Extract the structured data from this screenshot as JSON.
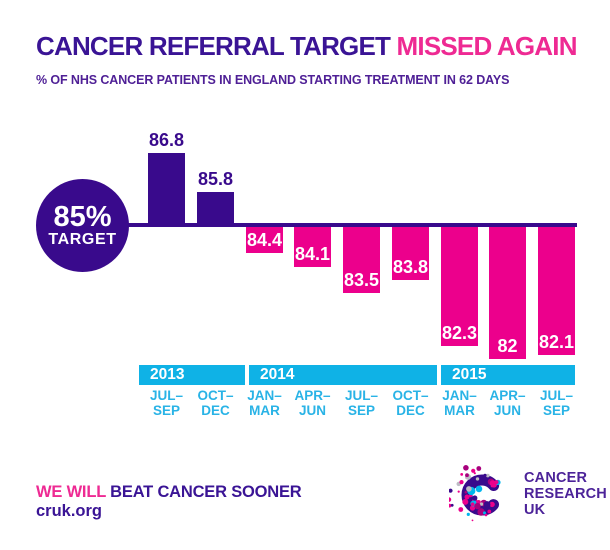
{
  "title": {
    "main": "CANCER REFERRAL TARGET",
    "highlight": "MISSED AGAIN"
  },
  "subtitle": "% OF NHS CANCER PATIENTS IN ENGLAND STARTING TREATMENT IN 62 DAYS",
  "target_badge": {
    "value": "85%",
    "label": "TARGET"
  },
  "chart_data": {
    "type": "bar",
    "title": "CANCER REFERRAL TARGET MISSED AGAIN",
    "subtitle": "% OF NHS CANCER PATIENTS IN ENGLAND STARTING TREATMENT IN 62 DAYS",
    "target_line": 85,
    "unit": "%",
    "values": [
      86.8,
      85.8,
      84.4,
      84.1,
      83.5,
      83.8,
      82.3,
      82,
      82.1
    ],
    "value_labels": [
      "86.8",
      "85.8",
      "84.4",
      "84.1",
      "83.5",
      "83.8",
      "82.3",
      "82",
      "82.1"
    ],
    "quarters": [
      [
        "JUL–",
        "SEP"
      ],
      [
        "OCT–",
        "DEC"
      ],
      [
        "JAN–",
        "MAR"
      ],
      [
        "APR–",
        "JUN"
      ],
      [
        "JUL–",
        "SEP"
      ],
      [
        "OCT–",
        "DEC"
      ],
      [
        "JAN–",
        "MAR"
      ],
      [
        "APR–",
        "JUN"
      ],
      [
        "JUL–",
        "SEP"
      ]
    ],
    "year_groups": [
      {
        "label": "2013",
        "quarters": 2
      },
      {
        "label": "2014",
        "quarters": 4
      },
      {
        "label": "2015",
        "quarters": 3
      }
    ],
    "legend": "bars above the line (purple) met the 85% target, bars below (pink) missed it",
    "above_color": "#390a8c",
    "below_color": "#ec008c",
    "band_color": "#0fb2e6"
  },
  "footer": {
    "tagline_highlight": "WE WILL",
    "tagline_rest": "BEAT CANCER SOONER",
    "url": "cruk.org"
  },
  "logo": {
    "lines": [
      "CANCER",
      "RESEARCH",
      "UK"
    ]
  },
  "colors": {
    "purple": "#390a8c",
    "pink": "#ec008c",
    "cyan": "#0fb2e6",
    "title_purple": "#3a1495",
    "text_pink": "#ee2a93",
    "white": "#ffffff"
  }
}
